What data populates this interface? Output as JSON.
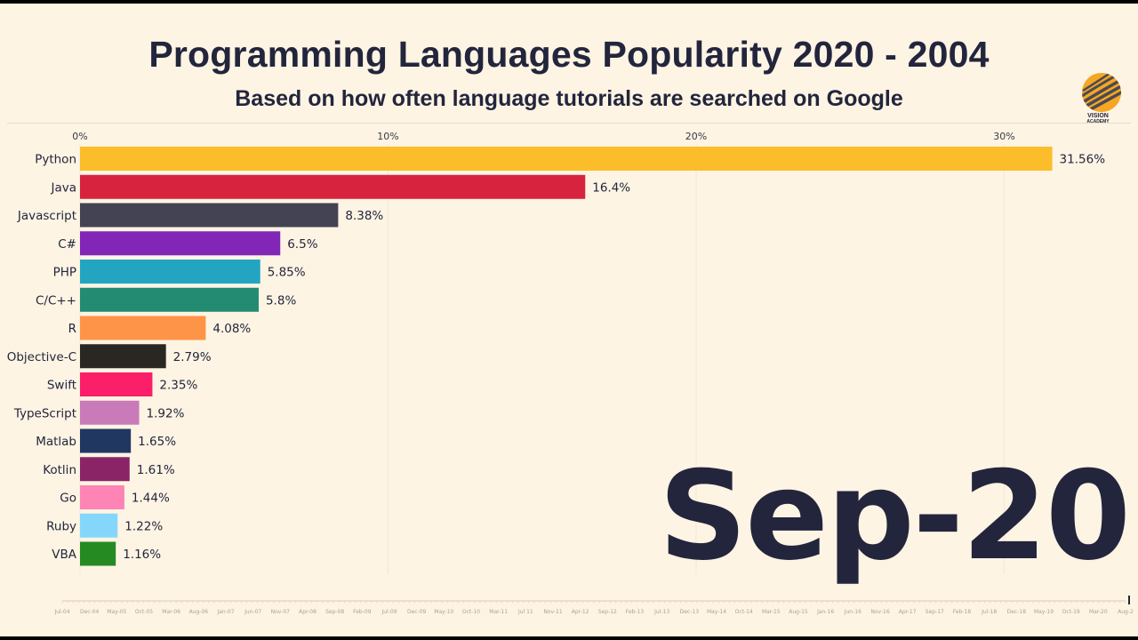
{
  "header": {
    "title": "Programming Languages Popularity 2020 - 2004",
    "subtitle": "Based on how often language tutorials are searched on Google"
  },
  "logo": {
    "text_line1": "VISION",
    "text_line2": "ACADEMY",
    "colors": [
      "#f5a623",
      "#4a4a52"
    ]
  },
  "current_date": "Sep-20",
  "chart_data": {
    "type": "bar",
    "orientation": "horizontal",
    "title": "Programming Languages Popularity 2020 - 2004",
    "subtitle": "Based on how often language tutorials are searched on Google",
    "xlim": [
      0,
      32
    ],
    "x_ticks": [
      {
        "value": 0,
        "label": "0%"
      },
      {
        "value": 10,
        "label": "10%"
      },
      {
        "value": 20,
        "label": "20%"
      },
      {
        "value": 30,
        "label": "30%"
      }
    ],
    "grid": true,
    "categories": [
      "Python",
      "Java",
      "Javascript",
      "C#",
      "PHP",
      "C/C++",
      "R",
      "Objective-C",
      "Swift",
      "TypeScript",
      "Matlab",
      "Kotlin",
      "Go",
      "Ruby",
      "VBA"
    ],
    "values": [
      31.56,
      16.4,
      8.38,
      6.5,
      5.85,
      5.8,
      4.08,
      2.79,
      2.35,
      1.92,
      1.65,
      1.61,
      1.44,
      1.22,
      1.16
    ],
    "value_labels": [
      "31.56%",
      "16.4%",
      "8.38%",
      "6.5%",
      "5.85%",
      "5.8%",
      "4.08%",
      "2.79%",
      "2.35%",
      "1.92%",
      "1.65%",
      "1.61%",
      "1.44%",
      "1.22%",
      "1.16%"
    ],
    "colors": [
      "#fbbd29",
      "#d8233e",
      "#434353",
      "#8126b7",
      "#23a5c2",
      "#238b72",
      "#fe9447",
      "#2a2723",
      "#fb1e68",
      "#c97ab8",
      "#203761",
      "#8b2367",
      "#fd84b4",
      "#84d7fb",
      "#268a22"
    ],
    "timeline": {
      "labels": [
        "Jul-04",
        "Dec-04",
        "May-05",
        "Oct-05",
        "Mar-06",
        "Aug-06",
        "Jan-07",
        "Jun-07",
        "Nov-07",
        "Apr-08",
        "Sep-08",
        "Feb-09",
        "Jul-09",
        "Dec-09",
        "May-10",
        "Oct-10",
        "Mar-11",
        "Jul 11",
        "Nov-11",
        "Apr-12",
        "Sep-12",
        "Feb-13",
        "Jul-13",
        "Dec-13",
        "May-14",
        "Oct-14",
        "Mar-15",
        "Aug-15",
        "Jan-16",
        "Jun-16",
        "Nov-16",
        "Apr-17",
        "Sep-17",
        "Feb-18",
        "Jul-18",
        "Dec-18",
        "May-19",
        "Oct-19",
        "Mar-20",
        "Aug-2"
      ]
    }
  }
}
